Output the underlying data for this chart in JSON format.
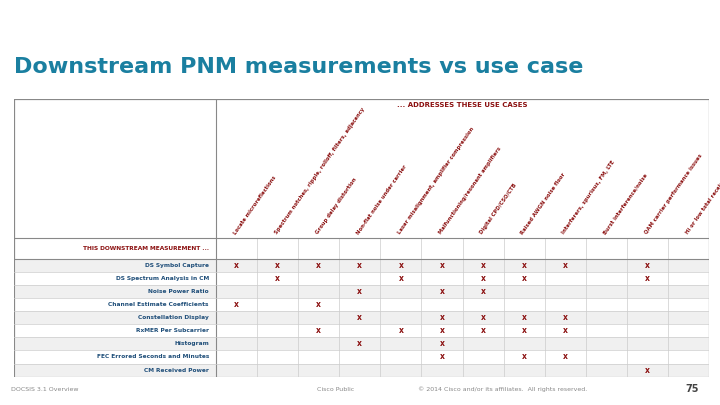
{
  "title": "Downstream PNM measurements vs use case",
  "title_color": "#1a7fa0",
  "teal_bar_color": "#1a8aaa",
  "slide_bg": "#FFFFFF",
  "table_header_text": "... ADDRESSES THESE USE CASES",
  "col_header_color": "#8B1010",
  "row_label_color": "#1F4E79",
  "x_color": "#8B1010",
  "first_col_label": "THIS DOWNSTREAM MEASUREMENT ...",
  "col_headers": [
    "Locate microreflections",
    "Spectrum notches, ripple, rolloff, filters, adjacency",
    "Group delay distortion",
    "Non-flat noise under carrier",
    "Laser misalignment, amplifier compression",
    "Malfunctioning/resonant amplifiers",
    "Digital CPD/CSO/CTB",
    "Raised AWGN noise floor",
    "Interferers, spurious, FM, LTE",
    "Burst interference/noise",
    "QAM carrier performance issues",
    "Hi or low total received DS power"
  ],
  "row_labels": [
    "DS Symbol Capture",
    "DS Spectrum Analysis in CM",
    "Noise Power Ratio",
    "Channel Estimate Coefficients",
    "Constellation Display",
    "RxMER Per Subcarrier",
    "Histogram",
    "FEC Errored Seconds and Minutes",
    "CM Received Power"
  ],
  "x_marks": [
    [
      1,
      1,
      1,
      1,
      1,
      1,
      1,
      1,
      1,
      0,
      1,
      0
    ],
    [
      0,
      1,
      0,
      0,
      1,
      0,
      1,
      1,
      0,
      0,
      1,
      0
    ],
    [
      0,
      0,
      0,
      1,
      0,
      1,
      1,
      0,
      0,
      0,
      0,
      0
    ],
    [
      1,
      0,
      1,
      0,
      0,
      0,
      0,
      0,
      0,
      0,
      0,
      0
    ],
    [
      0,
      0,
      0,
      1,
      0,
      1,
      1,
      1,
      1,
      0,
      0,
      0
    ],
    [
      0,
      0,
      1,
      0,
      1,
      1,
      1,
      1,
      1,
      0,
      0,
      0
    ],
    [
      0,
      0,
      0,
      1,
      0,
      1,
      0,
      0,
      0,
      0,
      0,
      0
    ],
    [
      0,
      0,
      0,
      0,
      0,
      1,
      0,
      1,
      1,
      0,
      0,
      0
    ],
    [
      0,
      0,
      0,
      0,
      0,
      0,
      0,
      0,
      0,
      0,
      1,
      0
    ]
  ],
  "footer_left": "DOCSIS 3.1 Overview",
  "footer_center": "Cisco Public",
  "footer_right": "© 2014 Cisco and/or its affiliates.  All rights reserved.",
  "footer_page": "75"
}
